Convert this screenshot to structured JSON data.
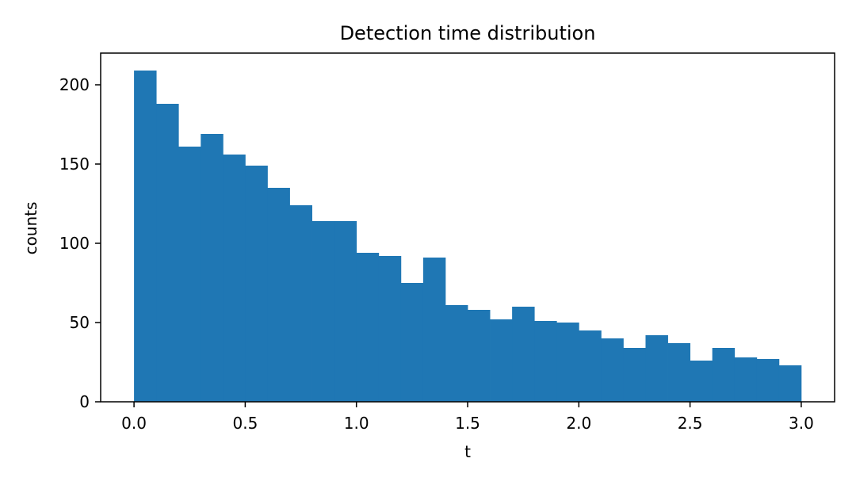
{
  "chart_data": {
    "type": "bar",
    "subtype": "histogram",
    "title": "Detection time distribution",
    "xlabel": "t",
    "ylabel": "counts",
    "xlim": [
      -0.15,
      3.15
    ],
    "ylim": [
      0,
      220
    ],
    "xticks": [
      0.0,
      0.5,
      1.0,
      1.5,
      2.0,
      2.5,
      3.0
    ],
    "xtick_labels": [
      "0.0",
      "0.5",
      "1.0",
      "1.5",
      "2.0",
      "2.5",
      "3.0"
    ],
    "yticks": [
      0,
      50,
      100,
      150,
      200
    ],
    "ytick_labels": [
      "0",
      "50",
      "100",
      "150",
      "200"
    ],
    "bin_range": [
      0.0,
      3.0
    ],
    "bins": 30,
    "bin_edges": [
      0.0,
      0.1,
      0.2,
      0.3,
      0.4,
      0.5,
      0.6,
      0.7,
      0.8,
      0.9,
      1.0,
      1.1,
      1.2,
      1.3,
      1.4,
      1.5,
      1.6,
      1.7,
      1.8,
      1.9,
      2.0,
      2.1,
      2.2,
      2.3,
      2.4,
      2.5,
      2.6,
      2.7,
      2.8,
      2.9,
      3.0
    ],
    "values": [
      209,
      188,
      161,
      169,
      156,
      149,
      135,
      124,
      114,
      114,
      94,
      92,
      75,
      91,
      61,
      58,
      52,
      60,
      51,
      50,
      45,
      40,
      34,
      42,
      37,
      26,
      34,
      28,
      27,
      23
    ],
    "color": "#1f77b4",
    "grid": false,
    "legend": false
  }
}
